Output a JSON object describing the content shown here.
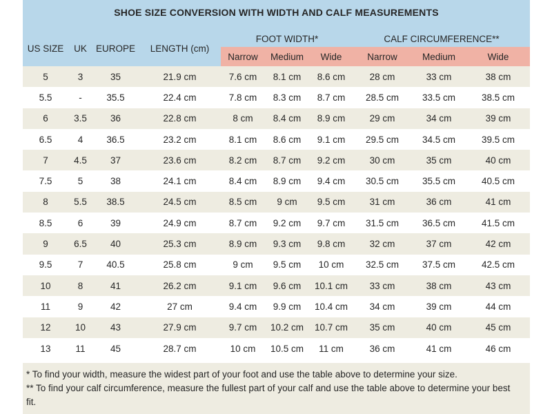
{
  "chart_data": {
    "type": "table",
    "title": "SHOE SIZE CONVERSION WITH WIDTH AND CALF MEASUREMENTS",
    "column_headers": [
      "US SIZE",
      "UK",
      "EUROPE",
      "LENGTH (cm)"
    ],
    "column_groups": [
      {
        "label": "FOOT WIDTH*",
        "subcolumns": [
          "Narrow",
          "Medium",
          "Wide"
        ]
      },
      {
        "label": "CALF CIRCUMFERENCE**",
        "subcolumns": [
          "Narrow",
          "Medium",
          "Wide"
        ]
      }
    ],
    "rows": [
      [
        "5",
        "3",
        "35",
        "21.9 cm",
        "7.6 cm",
        "8.1 cm",
        "8.6 cm",
        "28 cm",
        "33 cm",
        "38 cm"
      ],
      [
        "5.5",
        "-",
        "35.5",
        "22.4 cm",
        "7.8 cm",
        "8.3 cm",
        "8.7 cm",
        "28.5 cm",
        "33.5 cm",
        "38.5 cm"
      ],
      [
        "6",
        "3.5",
        "36",
        "22.8 cm",
        "8 cm",
        "8.4 cm",
        "8.9 cm",
        "29 cm",
        "34 cm",
        "39 cm"
      ],
      [
        "6.5",
        "4",
        "36.5",
        "23.2 cm",
        "8.1 cm",
        "8.6 cm",
        "9.1 cm",
        "29.5 cm",
        "34.5 cm",
        "39.5 cm"
      ],
      [
        "7",
        "4.5",
        "37",
        "23.6 cm",
        "8.2 cm",
        "8.7 cm",
        "9.2 cm",
        "30 cm",
        "35 cm",
        "40 cm"
      ],
      [
        "7.5",
        "5",
        "38",
        "24.1 cm",
        "8.4 cm",
        "8.9 cm",
        "9.4 cm",
        "30.5 cm",
        "35.5 cm",
        "40.5 cm"
      ],
      [
        "8",
        "5.5",
        "38.5",
        "24.5 cm",
        "8.5 cm",
        "9 cm",
        "9.5 cm",
        "31 cm",
        "36 cm",
        "41 cm"
      ],
      [
        "8.5",
        "6",
        "39",
        "24.9 cm",
        "8.7 cm",
        "9.2 cm",
        "9.7 cm",
        "31.5 cm",
        "36.5 cm",
        "41.5 cm"
      ],
      [
        "9",
        "6.5",
        "40",
        "25.3 cm",
        "8.9 cm",
        "9.3 cm",
        "9.8 cm",
        "32 cm",
        "37 cm",
        "42 cm"
      ],
      [
        "9.5",
        "7",
        "40.5",
        "25.8 cm",
        "9 cm",
        "9.5 cm",
        "10 cm",
        "32.5 cm",
        "37.5 cm",
        "42.5 cm"
      ],
      [
        "10",
        "8",
        "41",
        "26.2 cm",
        "9.1 cm",
        "9.6 cm",
        "10.1 cm",
        "33 cm",
        "38 cm",
        "43 cm"
      ],
      [
        "11",
        "9",
        "42",
        "27 cm",
        "9.4 cm",
        "9.9 cm",
        "10.4 cm",
        "34 cm",
        "39 cm",
        "44 cm"
      ],
      [
        "12",
        "10",
        "43",
        "27.9 cm",
        "9.7 cm",
        "10.2 cm",
        "10.7 cm",
        "35 cm",
        "40 cm",
        "45 cm"
      ],
      [
        "13",
        "11",
        "45",
        "28.7 cm",
        "10 cm",
        "10.5 cm",
        "11 cm",
        "36 cm",
        "41 cm",
        "46 cm"
      ]
    ],
    "footnotes": [
      "* To find your width, measure the widest part of your foot and use the table above to determine your size.",
      "** To find your calf circumference, measure the fullest part of your calf and use the table above to determine your best fit."
    ]
  },
  "colors": {
    "header_blue": "#b8d7ea",
    "subheader_pink": "#f0b2a5",
    "row_beige": "#eeece1",
    "row_white": "#ffffff",
    "text": "#262626"
  }
}
